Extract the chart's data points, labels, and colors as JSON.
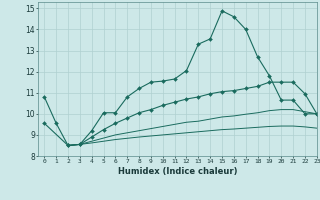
{
  "xlabel": "Humidex (Indice chaleur)",
  "xlim": [
    -0.5,
    23
  ],
  "ylim": [
    8,
    15.3
  ],
  "xticks": [
    0,
    1,
    2,
    3,
    4,
    5,
    6,
    7,
    8,
    9,
    10,
    11,
    12,
    13,
    14,
    15,
    16,
    17,
    18,
    19,
    20,
    21,
    22,
    23
  ],
  "yticks": [
    8,
    9,
    10,
    11,
    12,
    13,
    14,
    15
  ],
  "background_color": "#cde8e8",
  "grid_color": "#b0d0d0",
  "line_color": "#1a6b5e",
  "line1_x": [
    0,
    1,
    2,
    3,
    4,
    5,
    6,
    7,
    8,
    9,
    10,
    11,
    12,
    13,
    14,
    15,
    16,
    17,
    18,
    19,
    20,
    21,
    22,
    23
  ],
  "line1_y": [
    10.8,
    9.55,
    8.5,
    8.55,
    9.2,
    10.05,
    10.05,
    10.8,
    11.2,
    11.5,
    11.55,
    11.65,
    12.05,
    13.3,
    13.55,
    14.88,
    14.6,
    14.0,
    12.7,
    11.8,
    10.65,
    10.65,
    10.0,
    10.0
  ],
  "line2_x": [
    0,
    2,
    3,
    4,
    5,
    6,
    7,
    8,
    9,
    10,
    11,
    12,
    13,
    14,
    15,
    16,
    17,
    18,
    19,
    20,
    21,
    22,
    23
  ],
  "line2_y": [
    9.55,
    8.5,
    8.55,
    8.9,
    9.25,
    9.55,
    9.8,
    10.05,
    10.2,
    10.4,
    10.55,
    10.7,
    10.8,
    10.95,
    11.05,
    11.1,
    11.2,
    11.3,
    11.5,
    11.5,
    11.5,
    10.95,
    10.0
  ],
  "line3_x": [
    2,
    3,
    4,
    5,
    6,
    7,
    8,
    9,
    10,
    11,
    12,
    13,
    14,
    15,
    16,
    17,
    18,
    19,
    20,
    21,
    22,
    23
  ],
  "line3_y": [
    8.5,
    8.55,
    8.7,
    8.85,
    9.0,
    9.1,
    9.2,
    9.3,
    9.4,
    9.5,
    9.6,
    9.65,
    9.75,
    9.85,
    9.9,
    9.98,
    10.05,
    10.15,
    10.2,
    10.2,
    10.1,
    10.0
  ],
  "line4_x": [
    2,
    3,
    4,
    5,
    6,
    7,
    8,
    9,
    10,
    11,
    12,
    13,
    14,
    15,
    16,
    17,
    18,
    19,
    20,
    21,
    22,
    23
  ],
  "line4_y": [
    8.5,
    8.55,
    8.62,
    8.7,
    8.78,
    8.84,
    8.9,
    8.95,
    9.0,
    9.05,
    9.1,
    9.15,
    9.2,
    9.25,
    9.28,
    9.32,
    9.36,
    9.4,
    9.42,
    9.42,
    9.38,
    9.32
  ]
}
